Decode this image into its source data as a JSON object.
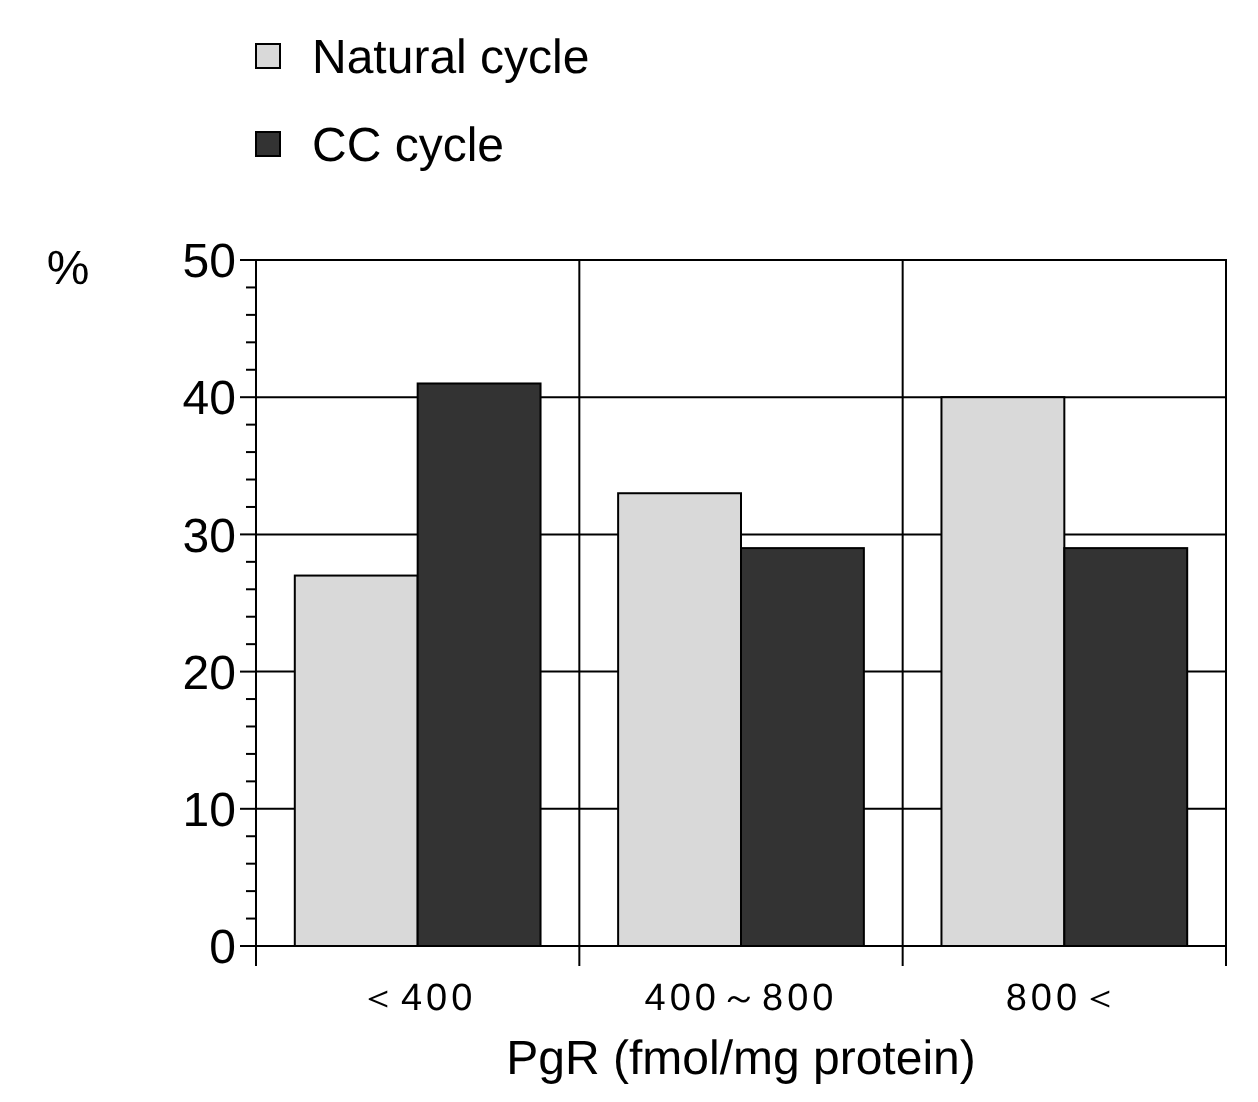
{
  "chart_data": {
    "type": "bar",
    "xlabel": "PgR (fmol/mg protein)",
    "ylabel": "%",
    "categories": [
      "＜400",
      "400～800",
      "800＜"
    ],
    "series": [
      {
        "name": "Natural cycle",
        "color": "#d9d9d9",
        "values": [
          27,
          33,
          40
        ]
      },
      {
        "name": "CC cycle",
        "color": "#333333",
        "values": [
          41,
          29,
          29
        ]
      }
    ],
    "ylim": [
      0,
      50
    ],
    "yticks": [
      0,
      {
        "value": 2,
        "label": null
      },
      {
        "value": 4,
        "label": null
      },
      {
        "value": 6,
        "label": null
      },
      {
        "value": 8,
        "label": null
      },
      10,
      {
        "value": 12,
        "label": null
      },
      {
        "value": 14,
        "label": null
      },
      {
        "value": 16,
        "label": null
      },
      {
        "value": 18,
        "label": null
      },
      20,
      {
        "value": 22,
        "label": null
      },
      {
        "value": 24,
        "label": null
      },
      {
        "value": 26,
        "label": null
      },
      {
        "value": 28,
        "label": null
      },
      30,
      {
        "value": 32,
        "label": null
      },
      {
        "value": 34,
        "label": null
      },
      {
        "value": 36,
        "label": null
      },
      {
        "value": 38,
        "label": null
      },
      40,
      {
        "value": 42,
        "label": null
      },
      {
        "value": 44,
        "label": null
      },
      {
        "value": 46,
        "label": null
      },
      {
        "value": 48,
        "label": null
      },
      50
    ],
    "grid": true,
    "legend": "top left"
  }
}
